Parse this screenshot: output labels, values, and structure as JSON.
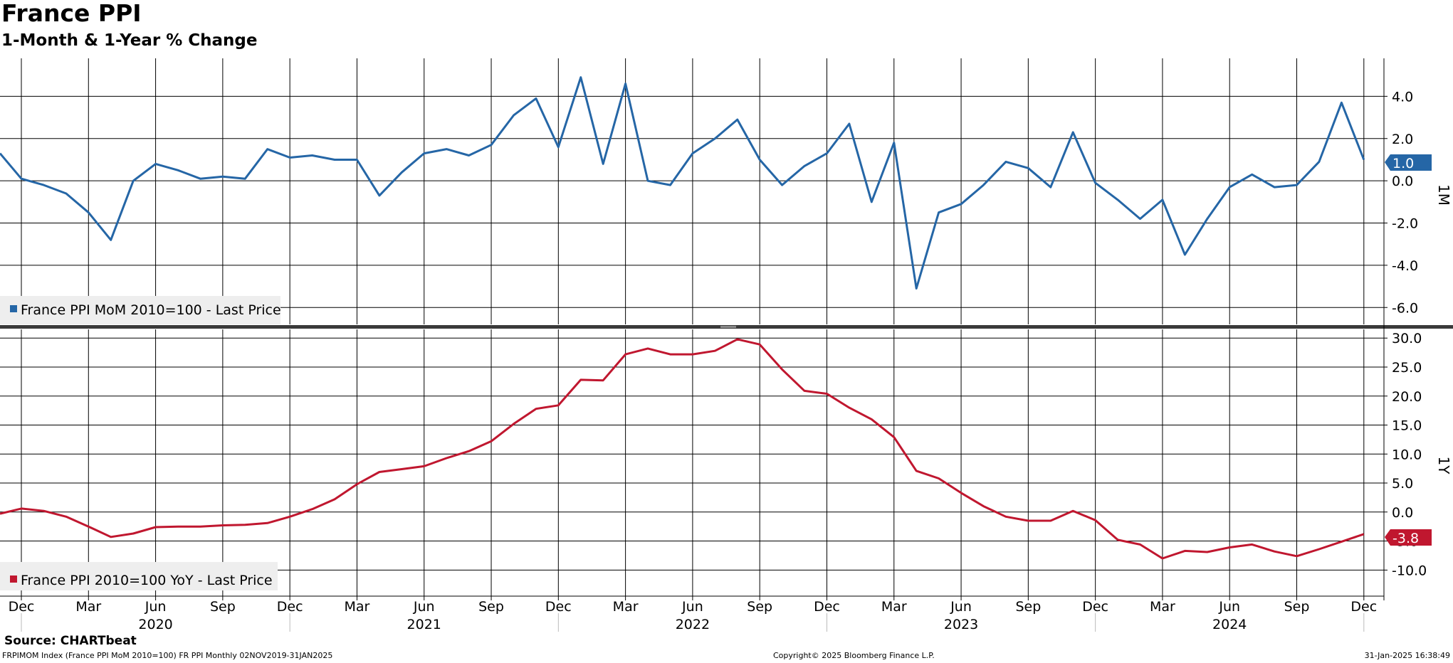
{
  "header": {
    "title": "France PPI",
    "subtitle": "1-Month & 1-Year % Change"
  },
  "footer": {
    "source": "Source: CHARTbeat",
    "ticker_info": "FRPIMOM Index (France PPI MoM 2010=100) FR PPI  Monthly 02NOV2019-31JAN2025",
    "copyright": "Copyright© 2025 Bloomberg Finance L.P.",
    "timestamp": "31-Jan-2025 16:38:49"
  },
  "colors": {
    "mom": "#2566a6",
    "yoy": "#c0172f",
    "grid": "#000000",
    "legend_bg": "#eeeeee",
    "divider": "#3a3a3a"
  },
  "chart_data": [
    {
      "type": "line",
      "panel": "top",
      "axis_label": "1M",
      "ylim": [
        -6.8,
        5.8
      ],
      "yticks": [
        4.0,
        2.0,
        0.0,
        -2.0,
        -4.0,
        -6.0
      ],
      "ytick_labels": [
        "4.0",
        "2.0",
        "0.0",
        "-2.0",
        "-4.0",
        "-6.0"
      ],
      "grid": true,
      "legend_position": "bottom-left",
      "last_value_label": "1.0",
      "series": [
        {
          "name": "France PPI MoM 2010=100 - Last Price",
          "x": [
            "2019-11",
            "2019-12",
            "2020-01",
            "2020-02",
            "2020-03",
            "2020-04",
            "2020-05",
            "2020-06",
            "2020-07",
            "2020-08",
            "2020-09",
            "2020-10",
            "2020-11",
            "2020-12",
            "2021-01",
            "2021-02",
            "2021-03",
            "2021-04",
            "2021-05",
            "2021-06",
            "2021-07",
            "2021-08",
            "2021-09",
            "2021-10",
            "2021-11",
            "2021-12",
            "2022-01",
            "2022-02",
            "2022-03",
            "2022-04",
            "2022-05",
            "2022-06",
            "2022-07",
            "2022-08",
            "2022-09",
            "2022-10",
            "2022-11",
            "2022-12",
            "2023-01",
            "2023-02",
            "2023-03",
            "2023-04",
            "2023-05",
            "2023-06",
            "2023-07",
            "2023-08",
            "2023-09",
            "2023-10",
            "2023-11",
            "2023-12",
            "2024-01",
            "2024-02",
            "2024-03",
            "2024-04",
            "2024-05",
            "2024-06",
            "2024-07",
            "2024-08",
            "2024-09",
            "2024-10",
            "2024-11",
            "2024-12"
          ],
          "values": [
            1.3,
            0.1,
            -0.2,
            -0.6,
            -1.5,
            -2.8,
            0.0,
            0.8,
            0.5,
            0.1,
            0.2,
            0.1,
            1.5,
            1.1,
            1.2,
            1.0,
            1.0,
            -0.7,
            0.4,
            1.3,
            1.5,
            1.2,
            1.7,
            3.1,
            3.9,
            1.6,
            4.9,
            0.8,
            4.6,
            0.0,
            -0.2,
            1.3,
            2.0,
            2.9,
            1.0,
            -0.2,
            0.7,
            1.3,
            2.7,
            -1.0,
            1.8,
            -5.1,
            -1.5,
            -1.1,
            -0.2,
            0.9,
            0.6,
            -0.3,
            2.3,
            -0.1,
            -0.9,
            -1.8,
            -0.9,
            -3.5,
            -1.8,
            -0.3,
            0.3,
            -0.3,
            -0.2,
            0.9,
            3.7,
            1.0
          ]
        }
      ]
    },
    {
      "type": "line",
      "panel": "bottom",
      "axis_label": "1Y",
      "ylim": [
        -14.5,
        31.5
      ],
      "yticks": [
        30.0,
        25.0,
        20.0,
        15.0,
        10.0,
        5.0,
        0.0,
        -5.0,
        -10.0
      ],
      "ytick_labels": [
        "30.0",
        "25.0",
        "20.0",
        "15.0",
        "10.0",
        "5.0",
        "0.0",
        "-5.0",
        "-10.0"
      ],
      "grid": true,
      "legend_position": "bottom-left",
      "last_value_label": "-3.8",
      "x_ticks": [
        "Dec",
        "Mar",
        "Jun",
        "Sep",
        "Dec",
        "Mar",
        "Jun",
        "Sep",
        "Dec",
        "Mar",
        "Jun",
        "Sep",
        "Dec",
        "Mar",
        "Jun",
        "Sep",
        "Dec",
        "Mar",
        "Jun",
        "Sep",
        "Dec"
      ],
      "x_years": [
        "2020",
        "2021",
        "2022",
        "2023",
        "2024"
      ],
      "series": [
        {
          "name": "France PPI 2010=100 YoY - Last Price",
          "x": [
            "2019-11",
            "2019-12",
            "2020-01",
            "2020-02",
            "2020-03",
            "2020-04",
            "2020-05",
            "2020-06",
            "2020-07",
            "2020-08",
            "2020-09",
            "2020-10",
            "2020-11",
            "2020-12",
            "2021-01",
            "2021-02",
            "2021-03",
            "2021-04",
            "2021-05",
            "2021-06",
            "2021-07",
            "2021-08",
            "2021-09",
            "2021-10",
            "2021-11",
            "2021-12",
            "2022-01",
            "2022-02",
            "2022-03",
            "2022-04",
            "2022-05",
            "2022-06",
            "2022-07",
            "2022-08",
            "2022-09",
            "2022-10",
            "2022-11",
            "2022-12",
            "2023-01",
            "2023-02",
            "2023-03",
            "2023-04",
            "2023-05",
            "2023-06",
            "2023-07",
            "2023-08",
            "2023-09",
            "2023-10",
            "2023-11",
            "2023-12",
            "2024-01",
            "2024-02",
            "2024-03",
            "2024-04",
            "2024-05",
            "2024-06",
            "2024-07",
            "2024-08",
            "2024-09",
            "2024-10",
            "2024-11",
            "2024-12"
          ],
          "values": [
            -0.3,
            0.6,
            0.2,
            -0.8,
            -2.5,
            -4.3,
            -3.7,
            -2.6,
            -2.5,
            -2.5,
            -2.3,
            -2.2,
            -1.9,
            -0.8,
            0.5,
            2.2,
            4.8,
            6.9,
            7.4,
            7.9,
            9.3,
            10.5,
            12.2,
            15.2,
            17.8,
            18.4,
            22.8,
            22.7,
            27.2,
            28.2,
            27.2,
            27.2,
            27.8,
            29.8,
            28.9,
            24.6,
            20.9,
            20.4,
            18.0,
            16.0,
            12.9,
            7.1,
            5.8,
            3.3,
            1.0,
            -0.8,
            -1.5,
            -1.5,
            0.2,
            -1.4,
            -4.8,
            -5.6,
            -8.0,
            -6.7,
            -6.9,
            -6.1,
            -5.6,
            -6.8,
            -7.6,
            -6.4,
            -5.1,
            -3.8
          ]
        }
      ]
    }
  ]
}
